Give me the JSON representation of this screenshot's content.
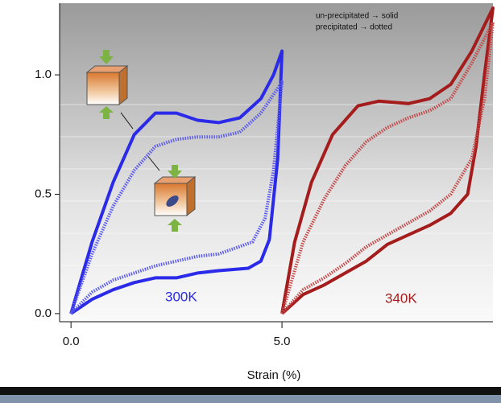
{
  "chart_data": {
    "type": "line",
    "xlabel": "Strain (%)",
    "xlim": [
      -0.27,
      10
    ],
    "ylim": [
      -0.034,
      1.3
    ],
    "xticks": [
      {
        "value": 0,
        "label": "0.0"
      },
      {
        "value": 5,
        "label": "5.0"
      }
    ],
    "yticks": [
      {
        "value": 0,
        "label": "0.0"
      },
      0.5,
      {
        "value": 1,
        "label": "1.0"
      }
    ],
    "annotations": [
      "un-precipitated → solid",
      "precipitated → dotted",
      "300K",
      "340K"
    ],
    "series": [
      {
        "color": "#2a2ae8",
        "dotted": false,
        "x": [
          0,
          0.5,
          1,
          1.5,
          2,
          2.5,
          3,
          3.5,
          4,
          4.5,
          4.8,
          5,
          4.9,
          4.7,
          4.5,
          4.2,
          3.5,
          3,
          2.5,
          2,
          1.5,
          1,
          0.5,
          0
        ],
        "values": [
          0,
          0.3,
          0.55,
          0.75,
          0.84,
          0.84,
          0.81,
          0.8,
          0.82,
          0.9,
          1,
          1.1,
          0.65,
          0.31,
          0.22,
          0.19,
          0.18,
          0.17,
          0.15,
          0.15,
          0.13,
          0.1,
          0.06,
          0
        ]
      },
      {
        "color": "#5a5af0",
        "dotted": true,
        "x": [
          0,
          0.5,
          1,
          1.5,
          2,
          2.5,
          3,
          3.5,
          4,
          4.5,
          5,
          4.8,
          4.6,
          4.3,
          3.5,
          3,
          2.5,
          2,
          1.5,
          1,
          0.5,
          0
        ],
        "values": [
          0,
          0.25,
          0.45,
          0.6,
          0.7,
          0.73,
          0.74,
          0.74,
          0.76,
          0.84,
          0.97,
          0.6,
          0.4,
          0.3,
          0.25,
          0.24,
          0.22,
          0.2,
          0.17,
          0.14,
          0.09,
          0
        ]
      },
      {
        "color": "#a51c1c",
        "dotted": false,
        "x": [
          5,
          5.3,
          5.7,
          6.2,
          6.8,
          7.3,
          8,
          8.5,
          9,
          9.5,
          10,
          9.8,
          9.6,
          9.4,
          9,
          8.5,
          8,
          7.5,
          7,
          6.5,
          6,
          5.5,
          5
        ],
        "values": [
          0,
          0.3,
          0.55,
          0.75,
          0.87,
          0.89,
          0.88,
          0.9,
          0.96,
          1.1,
          1.28,
          1,
          0.7,
          0.5,
          0.42,
          0.37,
          0.33,
          0.29,
          0.22,
          0.17,
          0.12,
          0.08,
          0
        ]
      },
      {
        "color": "#c44848",
        "dotted": true,
        "x": [
          5,
          5.5,
          6,
          6.5,
          7,
          7.5,
          8,
          8.5,
          9,
          9.5,
          10,
          9.8,
          9.5,
          9,
          8.5,
          8,
          7.5,
          7,
          6.5,
          6,
          5.5,
          5
        ],
        "values": [
          0,
          0.3,
          0.48,
          0.62,
          0.72,
          0.78,
          0.82,
          0.85,
          0.9,
          1.05,
          1.22,
          0.9,
          0.65,
          0.5,
          0.43,
          0.38,
          0.33,
          0.28,
          0.21,
          0.15,
          0.1,
          0
        ]
      }
    ]
  }
}
